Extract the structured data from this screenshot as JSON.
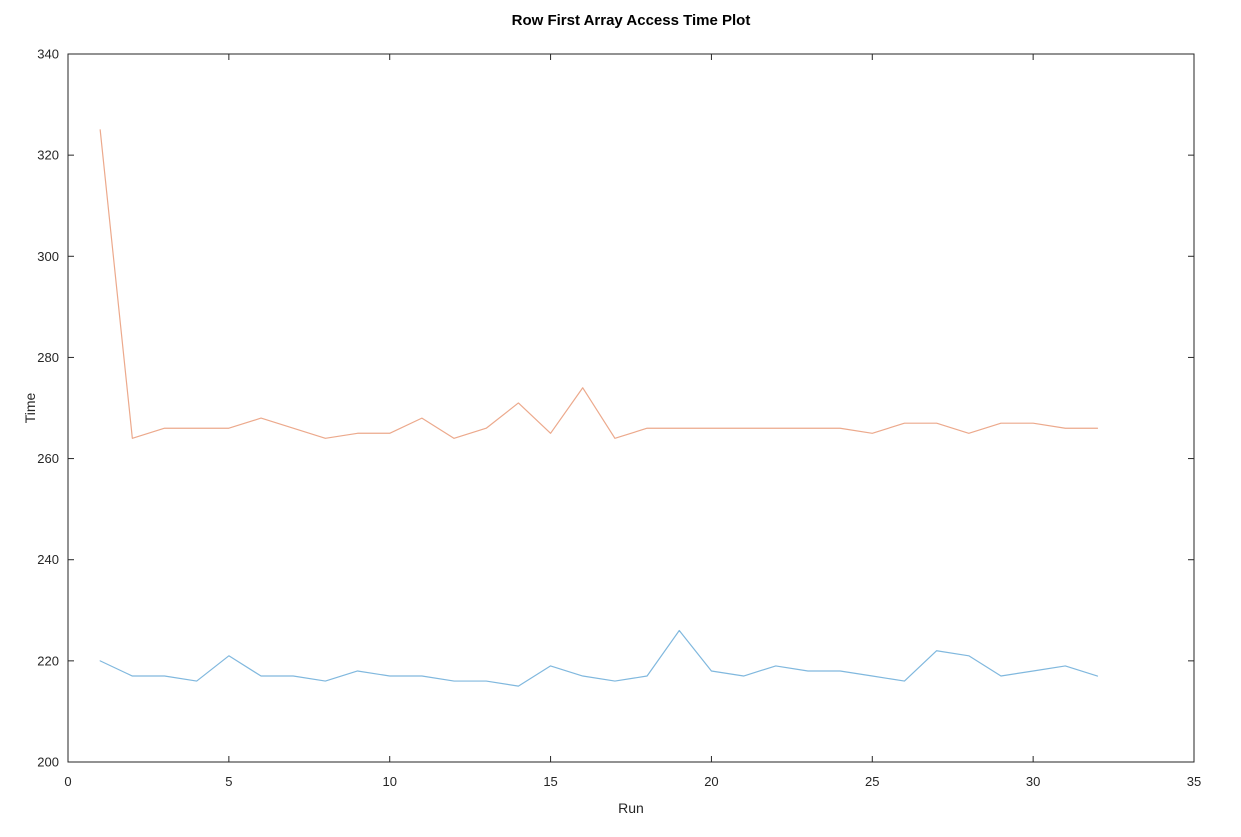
{
  "chart_data": {
    "type": "line",
    "title": "Row First Array Access Time Plot",
    "xlabel": "Run",
    "ylabel": "Time",
    "xlim": [
      0,
      35
    ],
    "ylim": [
      200,
      340
    ],
    "xticks": [
      0,
      5,
      10,
      15,
      20,
      25,
      30,
      35
    ],
    "yticks": [
      200,
      220,
      240,
      260,
      280,
      300,
      320,
      340
    ],
    "grid": false,
    "legend_position": "none",
    "box_frame": true,
    "axis_color": "#262626",
    "background_color": "#ffffff",
    "x": [
      1,
      2,
      3,
      4,
      5,
      6,
      7,
      8,
      9,
      10,
      11,
      12,
      13,
      14,
      15,
      16,
      17,
      18,
      19,
      20,
      21,
      22,
      23,
      24,
      25,
      26,
      27,
      28,
      29,
      30,
      31,
      32
    ],
    "series": [
      {
        "name": "upper-orange-line",
        "color": "#ECA98C",
        "values": [
          325,
          264,
          266,
          266,
          266,
          268,
          266,
          264,
          265,
          265,
          268,
          264,
          266,
          271,
          265,
          274,
          264,
          266,
          266,
          266,
          266,
          266,
          266,
          266,
          265,
          267,
          267,
          265,
          267,
          267,
          266,
          266
        ]
      },
      {
        "name": "lower-blue-line",
        "color": "#80B8DE",
        "values": [
          220,
          217,
          217,
          216,
          221,
          217,
          217,
          216,
          218,
          217,
          217,
          216,
          216,
          215,
          219,
          217,
          216,
          217,
          226,
          218,
          217,
          219,
          218,
          218,
          217,
          216,
          222,
          221,
          217,
          218,
          219,
          217
        ]
      }
    ]
  }
}
